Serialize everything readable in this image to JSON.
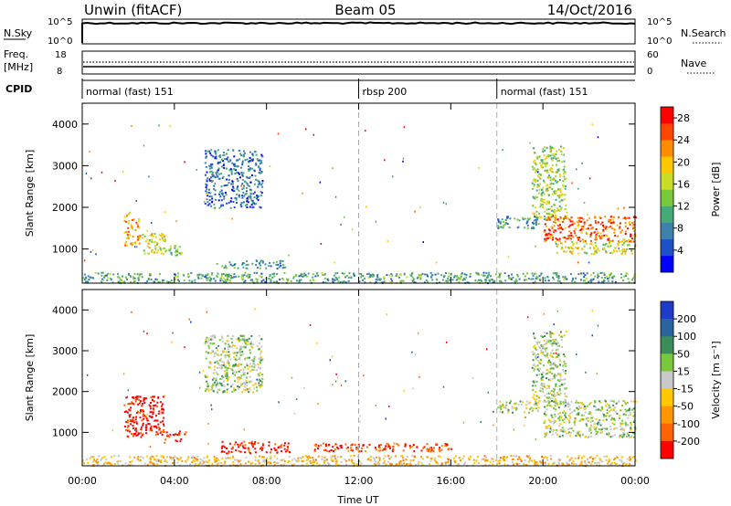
{
  "header": {
    "title": "Unwin (fitACF)",
    "beam": "Beam 05",
    "date": "14/Oct/2016"
  },
  "top_panels": {
    "nsky_label": "N.Sky",
    "nsky_ticks": [
      "10^5",
      "10^0"
    ],
    "nsearch_label": "N.Search",
    "freq_label_1": "Freq.",
    "freq_label_2": "[MHz]",
    "freq_ticks": [
      "18",
      "8"
    ],
    "nave_label": "Nave",
    "nave_ticks": [
      "60",
      "0"
    ],
    "cpid_label": "CPID",
    "cpid_segments": [
      {
        "label": "normal (fast) 151",
        "start_hour": 0,
        "end_hour": 12
      },
      {
        "label": "rbsp 200",
        "start_hour": 12,
        "end_hour": 18
      },
      {
        "label": "normal (fast) 151",
        "start_hour": 18,
        "end_hour": 24
      }
    ]
  },
  "chart_data": [
    {
      "type": "heatmap",
      "name": "power",
      "xlabel": "Time UT",
      "ylabel": "Slant Range [km]",
      "xlim": [
        0,
        24
      ],
      "ylim": [
        180,
        4500
      ],
      "x_ticks": [
        {
          "v": 0,
          "label": "00:00"
        },
        {
          "v": 4,
          "label": "04:00"
        },
        {
          "v": 8,
          "label": "08:00"
        },
        {
          "v": 12,
          "label": "12:00"
        },
        {
          "v": 16,
          "label": "16:00"
        },
        {
          "v": 20,
          "label": "20:00"
        },
        {
          "v": 24,
          "label": "00:00"
        }
      ],
      "y_ticks": [
        1000,
        2000,
        3000,
        4000
      ],
      "colorbar": {
        "label": "Power [dB]",
        "ticks": [
          4,
          8,
          12,
          16,
          20,
          24,
          28
        ],
        "range": [
          0,
          30
        ],
        "colors": [
          "#0000ff",
          "#1e50c8",
          "#3c82aa",
          "#46aa78",
          "#78c83c",
          "#c8dc28",
          "#ffc800",
          "#ff8c00",
          "#ff4600",
          "#ff0000"
        ]
      },
      "regions": [
        {
          "t": [
            1.8,
            2.5
          ],
          "r": [
            1100,
            1900
          ],
          "level": 0.72
        },
        {
          "t": [
            2.5,
            3.6
          ],
          "r": [
            900,
            1400
          ],
          "level": 0.55
        },
        {
          "t": [
            3.6,
            4.3
          ],
          "r": [
            850,
            1100
          ],
          "level": 0.45
        },
        {
          "t": [
            5.3,
            7.8
          ],
          "r": [
            2000,
            3400
          ],
          "level": 0.22
        },
        {
          "t": [
            5.8,
            8.8
          ],
          "r": [
            550,
            750
          ],
          "level": 0.3
        },
        {
          "t": [
            0.0,
            24.0
          ],
          "r": [
            200,
            450
          ],
          "level": 0.35
        },
        {
          "t": [
            18.0,
            19.8
          ],
          "r": [
            1500,
            1800
          ],
          "level": 0.3
        },
        {
          "t": [
            19.5,
            21.0
          ],
          "r": [
            1700,
            3500
          ],
          "level": 0.5
        },
        {
          "t": [
            20.0,
            24.0
          ],
          "r": [
            1200,
            1800
          ],
          "level": 0.82
        },
        {
          "t": [
            20.5,
            24.0
          ],
          "r": [
            900,
            1200
          ],
          "level": 0.55
        }
      ]
    },
    {
      "type": "heatmap",
      "name": "velocity",
      "xlabel": "Time UT",
      "ylabel": "Slant Range [km]",
      "xlim": [
        0,
        24
      ],
      "ylim": [
        180,
        4500
      ],
      "x_ticks": [
        {
          "v": 0,
          "label": "00:00"
        },
        {
          "v": 4,
          "label": "04:00"
        },
        {
          "v": 8,
          "label": "08:00"
        },
        {
          "v": 12,
          "label": "12:00"
        },
        {
          "v": 16,
          "label": "16:00"
        },
        {
          "v": 20,
          "label": "20:00"
        },
        {
          "v": 24,
          "label": "00:00"
        }
      ],
      "y_ticks": [
        1000,
        2000,
        3000,
        4000
      ],
      "colorbar": {
        "label": "Velocity [m s⁻¹]",
        "ticks": [
          "200",
          "100",
          "50",
          "15",
          "-15",
          "-50",
          "-100",
          "-200"
        ],
        "colors": [
          "#1e3cc8",
          "#2864a0",
          "#3c8c5a",
          "#78c83c",
          "#c8c8c8",
          "#ffc800",
          "#ff9600",
          "#ff6400",
          "#ff0000"
        ]
      },
      "regions": [
        {
          "t": [
            1.8,
            3.5
          ],
          "r": [
            900,
            1900
          ],
          "level": 0.97
        },
        {
          "t": [
            3.5,
            4.5
          ],
          "r": [
            750,
            1050
          ],
          "level": 0.97
        },
        {
          "t": [
            5.3,
            7.8
          ],
          "r": [
            2000,
            3400
          ],
          "level": 0.45
        },
        {
          "t": [
            6.0,
            9.0
          ],
          "r": [
            500,
            800
          ],
          "level": 0.97
        },
        {
          "t": [
            0.0,
            24.0
          ],
          "r": [
            200,
            450
          ],
          "level": 0.62
        },
        {
          "t": [
            10.0,
            16.0
          ],
          "r": [
            550,
            750
          ],
          "level": 0.9
        },
        {
          "t": [
            18.0,
            19.8
          ],
          "r": [
            1500,
            1800
          ],
          "level": 0.45
        },
        {
          "t": [
            19.5,
            21.0
          ],
          "r": [
            1700,
            3500
          ],
          "level": 0.45
        },
        {
          "t": [
            20.0,
            24.0
          ],
          "r": [
            900,
            1800
          ],
          "level": 0.45
        }
      ]
    }
  ]
}
